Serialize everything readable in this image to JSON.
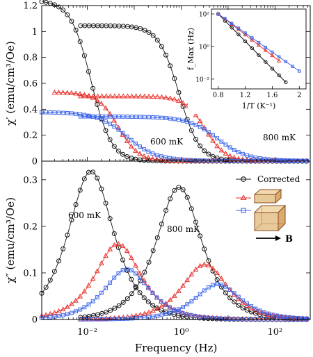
{
  "colors": {
    "black": "#111111",
    "red": "#e8312b",
    "blue": "#3b64e8",
    "box_fill": "#e8c99a",
    "box_edge": "#8a4b1c"
  },
  "chart_data": [
    {
      "type": "line",
      "panel": "top",
      "ylabel": "χ′ (emu/cm³/Oe)",
      "x_scale": "log",
      "xlim": [
        0.00107,
        562
      ],
      "ylim": [
        0,
        1.2
      ],
      "yticks": [
        "0",
        "0.2",
        "0.4",
        "0.6",
        "0.8",
        "1",
        "1.2"
      ],
      "annotations": [
        "600 mK",
        "800 mK"
      ],
      "series": [
        {
          "color": "black",
          "marker": "circle",
          "model": "real",
          "chi0": 1.24,
          "f0": 0.012,
          "alpha": 0.0,
          "fmin": 0.00107,
          "fmax": 562
        },
        {
          "color": "black",
          "marker": "circle",
          "model": "real",
          "chi0": 1.045,
          "f0": 0.9,
          "alpha": 0.0,
          "fmin": 0.0072,
          "fmax": 562
        },
        {
          "color": "red",
          "marker": "triangle",
          "model": "real",
          "chi0": 0.53,
          "f0": 0.045,
          "alpha": 0.0,
          "fmin": 0.002,
          "fmax": 562
        },
        {
          "color": "red",
          "marker": "triangle",
          "model": "real",
          "chi0": 0.5,
          "f0": 3.2,
          "alpha": 0.0,
          "fmin": 0.0072,
          "fmax": 562
        },
        {
          "color": "blue",
          "marker": "square",
          "model": "real",
          "chi0": 0.38,
          "f0": 0.07,
          "alpha": 0.15,
          "fmin": 0.00107,
          "fmax": 562
        },
        {
          "color": "blue",
          "marker": "square",
          "model": "real",
          "chi0": 0.345,
          "f0": 6.0,
          "alpha": 0.15,
          "fmin": 0.0072,
          "fmax": 562
        }
      ]
    },
    {
      "type": "line",
      "panel": "bottom",
      "xlabel": "Frequency (Hz)",
      "ylabel": "χ″ (emu/cm³/Oe)",
      "x_scale": "log",
      "xlim": [
        0.00107,
        562
      ],
      "ylim": [
        0,
        0.34
      ],
      "xticks": [
        "10⁻²",
        "10⁰",
        "10²"
      ],
      "yticks": [
        "0",
        "0.1",
        "0.2",
        "0.3"
      ],
      "annotations": [
        "600 mK",
        "800 mK"
      ],
      "legend": [
        "Corrected",
        "",
        ""
      ],
      "legend_arrow_label": "B",
      "series": [
        {
          "color": "black",
          "marker": "circle",
          "model": "imag",
          "peak": 0.318,
          "f0": 0.012,
          "fmin": 0.00107,
          "fmax": 562
        },
        {
          "color": "black",
          "marker": "circle",
          "model": "imag",
          "peak": 0.284,
          "f0": 0.9,
          "fmin": 0.0072,
          "fmax": 562
        },
        {
          "color": "red",
          "marker": "triangle",
          "model": "imag",
          "peak": 0.162,
          "f0": 0.045,
          "fmin": 0.00107,
          "fmax": 562
        },
        {
          "color": "red",
          "marker": "triangle",
          "model": "imag",
          "peak": 0.118,
          "f0": 3.2,
          "fmin": 0.0072,
          "fmax": 562
        },
        {
          "color": "blue",
          "marker": "square",
          "model": "imag",
          "peak": 0.108,
          "f0": 0.07,
          "fmin": 0.00107,
          "fmax": 562
        },
        {
          "color": "blue",
          "marker": "square",
          "model": "imag",
          "peak": 0.076,
          "f0": 6.0,
          "fmin": 0.0072,
          "fmax": 562
        }
      ]
    },
    {
      "type": "scatter",
      "panel": "inset",
      "xlabel": "1/T (K⁻¹)",
      "ylabel": "f_Max (Hz)",
      "y_scale": "log",
      "xlim": [
        0.7,
        2.1
      ],
      "ylim": [
        0.0025,
        200
      ],
      "xticks": [
        "0.8",
        "1.2",
        "1.6",
        "2"
      ],
      "yticks": [
        "10²",
        "10⁰",
        "10⁻²"
      ],
      "series": [
        {
          "color": "black",
          "marker": "circle",
          "x": [
            0.8,
            0.9,
            1.0,
            1.1,
            1.2,
            1.3,
            1.4,
            1.5,
            1.6,
            1.7,
            1.8
          ],
          "y": [
            100,
            38,
            14.5,
            5.5,
            2.1,
            0.8,
            0.3,
            0.115,
            0.044,
            0.017,
            0.0065
          ]
        },
        {
          "color": "red",
          "marker": "triangle",
          "x": [
            0.8,
            0.9,
            1.0,
            1.1,
            1.2,
            1.3,
            1.4,
            1.5,
            1.6,
            1.7
          ],
          "y": [
            100,
            48,
            23,
            11,
            5.3,
            2.5,
            1.2,
            0.58,
            0.28,
            0.13
          ]
        },
        {
          "color": "blue",
          "marker": "square",
          "x": [
            0.8,
            0.9,
            1.0,
            1.1,
            1.2,
            1.3,
            1.4,
            1.5,
            1.6,
            1.7,
            1.8,
            1.9,
            2.0
          ],
          "y": [
            100,
            51,
            26,
            13.2,
            6.7,
            3.4,
            1.75,
            0.89,
            0.45,
            0.23,
            0.118,
            0.06,
            0.031
          ]
        }
      ]
    }
  ]
}
